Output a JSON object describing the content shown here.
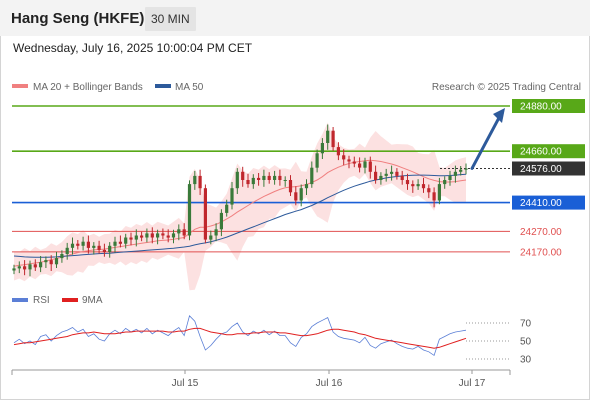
{
  "header": {
    "title": "Hang Seng (HKFE)",
    "timeframe": "30 MIN",
    "datetime": "Wednesday, July 16, 2025 10:00:04 PM CET"
  },
  "legend": {
    "ma20": {
      "label": "MA 20 + Bollinger Bands",
      "color": "#f08080"
    },
    "ma50": {
      "label": "MA 50",
      "color": "#2d5a9b"
    },
    "rsi": {
      "label": "RSI",
      "color": "#5b7fd6"
    },
    "rsi_ma": {
      "label": "9MA",
      "color": "#e02020"
    }
  },
  "watermark": "Research © 2025 Trading Central",
  "price_levels": [
    {
      "value": 24880,
      "label": "24880.00",
      "kind": "target",
      "color": "#58a818"
    },
    {
      "value": 24660,
      "label": "24660.00",
      "kind": "resistance",
      "color": "#58a818"
    },
    {
      "value": 24576,
      "label": "24576.00",
      "kind": "last",
      "color": "#333333"
    },
    {
      "value": 24410,
      "label": "24410.00",
      "kind": "pivot",
      "color": "#1a5fd6"
    },
    {
      "value": 24270,
      "label": "24270.00",
      "kind": "support",
      "color": "#e05050"
    },
    {
      "value": 24170,
      "label": "24170.00",
      "kind": "support",
      "color": "#e05050"
    }
  ],
  "rsi_ticks": [
    "70",
    "50",
    "30"
  ],
  "x_ticks": [
    "Jul 15",
    "Jul 16",
    "Jul 17"
  ],
  "chart_data": {
    "type": "candlestick",
    "price_range": [
      24030,
      24880
    ],
    "rsi_range": [
      20,
      80
    ],
    "closes": [
      24090,
      24100,
      24085,
      24110,
      24095,
      24120,
      24130,
      24110,
      24140,
      24160,
      24190,
      24210,
      24200,
      24220,
      24190,
      24200,
      24180,
      24170,
      24200,
      24220,
      24210,
      24240,
      24230,
      24250,
      24240,
      24260,
      24240,
      24260,
      24250,
      24240,
      24260,
      24280,
      24250,
      24500,
      24540,
      24480,
      24230,
      24250,
      24280,
      24360,
      24400,
      24480,
      24560,
      24520,
      24500,
      24530,
      24520,
      24540,
      24520,
      24540,
      24520,
      24520,
      24460,
      24420,
      24480,
      24500,
      24580,
      24650,
      24700,
      24760,
      24680,
      24640,
      24620,
      24610,
      24600,
      24580,
      24610,
      24560,
      24520,
      24540,
      24550,
      24560,
      24540,
      24520,
      24500,
      24490,
      24500,
      24480,
      24460,
      24420,
      24500,
      24520,
      24540,
      24560,
      24570,
      24576
    ],
    "ma20": [
      24100,
      24105,
      24108,
      24112,
      24116,
      24120,
      24126,
      24132,
      24138,
      24145,
      24152,
      24160,
      24166,
      24172,
      24176,
      24180,
      24182,
      24184,
      24188,
      24192,
      24196,
      24200,
      24204,
      24208,
      24212,
      24216,
      24220,
      24224,
      24226,
      24228,
      24232,
      24236,
      24240,
      24260,
      24280,
      24290,
      24290,
      24296,
      24304,
      24316,
      24330,
      24346,
      24364,
      24380,
      24396,
      24412,
      24426,
      24440,
      24452,
      24464,
      24474,
      24482,
      24486,
      24488,
      24492,
      24498,
      24508,
      24520,
      24536,
      24556,
      24570,
      24582,
      24592,
      24600,
      24606,
      24610,
      24614,
      24616,
      24614,
      24610,
      24604,
      24598,
      24590,
      24580,
      24570,
      24560,
      24548,
      24536,
      24526,
      24518,
      24512,
      24510,
      24510,
      24512,
      24516,
      24520
    ],
    "ma50": [
      24150,
      24148,
      24146,
      24145,
      24144,
      24144,
      24144,
      24145,
      24146,
      24148,
      24150,
      24152,
      24154,
      24156,
      24158,
      24160,
      24162,
      24163,
      24164,
      24166,
      24168,
      24170,
      24172,
      24174,
      24176,
      24178,
      24180,
      24182,
      24184,
      24186,
      24188,
      24191,
      24194,
      24198,
      24204,
      24210,
      24214,
      24220,
      24226,
      24234,
      24242,
      24252,
      24262,
      24272,
      24282,
      24292,
      24302,
      24312,
      24322,
      24332,
      24342,
      24352,
      24360,
      24368,
      24376,
      24386,
      24396,
      24408,
      24420,
      24434,
      24446,
      24458,
      24470,
      24480,
      24490,
      24498,
      24506,
      24514,
      24520,
      24525,
      24530,
      24534,
      24537,
      24540,
      24542,
      24543,
      24544,
      24544,
      24543,
      24542,
      24541,
      24541,
      24542,
      24544,
      24546,
      24548
    ],
    "rsi": [
      48,
      52,
      47,
      50,
      46,
      55,
      57,
      50,
      56,
      60,
      62,
      65,
      60,
      63,
      55,
      58,
      52,
      50,
      58,
      62,
      58,
      64,
      60,
      63,
      59,
      64,
      58,
      62,
      59,
      56,
      61,
      65,
      56,
      78,
      72,
      55,
      40,
      45,
      52,
      58,
      60,
      66,
      70,
      60,
      56,
      61,
      58,
      62,
      57,
      61,
      56,
      56,
      48,
      44,
      54,
      58,
      66,
      70,
      73,
      76,
      60,
      55,
      53,
      52,
      51,
      48,
      54,
      45,
      42,
      47,
      49,
      51,
      47,
      44,
      42,
      41,
      44,
      40,
      38,
      34,
      52,
      55,
      58,
      60,
      61,
      62
    ],
    "rsi_ma": [
      46,
      47,
      48,
      48,
      49,
      50,
      51,
      52,
      53,
      54,
      55,
      57,
      58,
      59,
      59,
      60,
      59,
      58,
      58,
      58,
      59,
      60,
      60,
      61,
      61,
      61,
      61,
      61,
      61,
      60,
      60,
      61,
      61,
      63,
      64,
      64,
      62,
      60,
      59,
      58,
      57,
      57,
      58,
      58,
      58,
      59,
      59,
      60,
      60,
      60,
      59,
      59,
      58,
      57,
      56,
      56,
      57,
      58,
      60,
      62,
      63,
      63,
      62,
      61,
      60,
      58,
      57,
      55,
      53,
      52,
      51,
      50,
      49,
      48,
      47,
      46,
      45,
      44,
      43,
      42,
      43,
      45,
      47,
      49,
      51,
      53
    ]
  }
}
